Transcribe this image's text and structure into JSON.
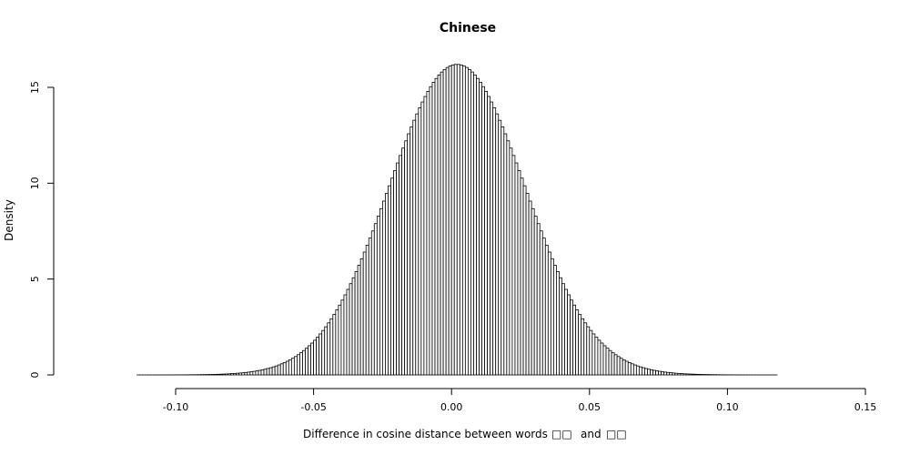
{
  "chart_data": {
    "type": "bar",
    "title": "Chinese",
    "xlabel": "Difference in cosine distance between words",
    "xlabel_connector": "and",
    "xlabel_glyphs": [
      "□□",
      "□□"
    ],
    "ylabel": "Density",
    "xlim": [
      -0.15,
      0.15
    ],
    "ylim": [
      0,
      16.2
    ],
    "x_ticks": [
      "-0.10",
      "-0.05",
      "0.00",
      "0.05",
      "0.10",
      "0.15"
    ],
    "y_ticks": [
      "0",
      "5",
      "10",
      "15"
    ],
    "histogram": {
      "x_min": -0.133,
      "x_max": 0.145,
      "bin_width": 0.001,
      "mean": 0.002,
      "peak_density": 16.2,
      "sd": 0.0246
    },
    "grid": false,
    "legend": "none",
    "colors": {
      "bar_fill": "#ffffff",
      "bar_stroke": "#000000"
    }
  }
}
